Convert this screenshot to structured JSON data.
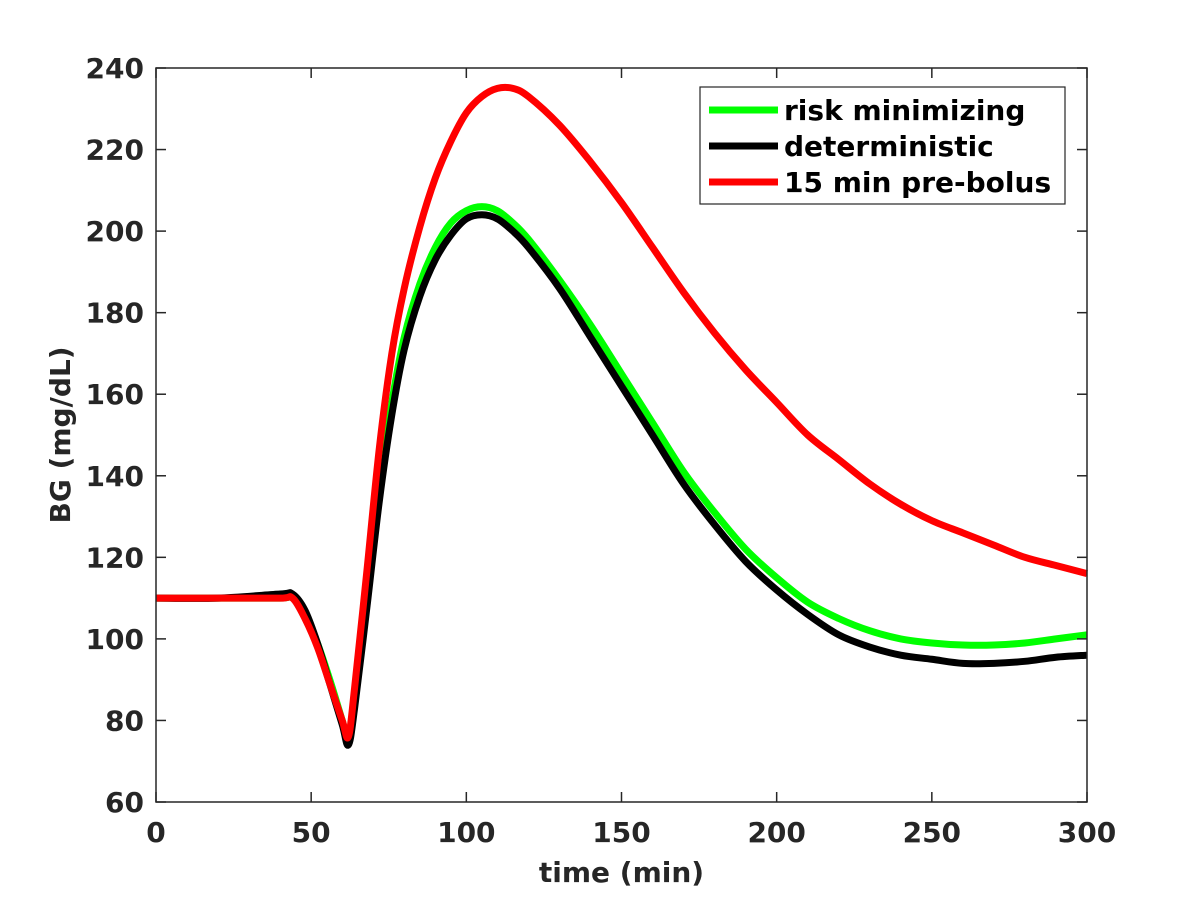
{
  "chart_data": {
    "type": "line",
    "title": "",
    "xlabel": "time (min)",
    "ylabel": "BG (mg/dL)",
    "xlim": [
      0,
      300
    ],
    "ylim": [
      60,
      240
    ],
    "xticks": [
      "0",
      "50",
      "100",
      "150",
      "200",
      "250",
      "300"
    ],
    "yticks": [
      "60",
      "80",
      "100",
      "120",
      "140",
      "160",
      "180",
      "200",
      "220",
      "240"
    ],
    "grid": false,
    "legend_position": "top-right",
    "series": [
      {
        "name": "risk minimizing",
        "color": "#00ff00",
        "x": [
          0,
          20,
          40,
          44,
          48,
          52,
          56,
          60,
          62,
          64,
          68,
          72,
          76,
          80,
          85,
          90,
          95,
          100,
          105,
          110,
          115,
          120,
          130,
          140,
          150,
          160,
          170,
          180,
          190,
          200,
          210,
          220,
          230,
          240,
          250,
          260,
          270,
          280,
          290,
          300
        ],
        "y": [
          110,
          110,
          110,
          110,
          106,
          99,
          90,
          80,
          75,
          84,
          110,
          137,
          158,
          174,
          187,
          196,
          202,
          205,
          206,
          205,
          202,
          198,
          188,
          177,
          165,
          153,
          141,
          131,
          122,
          115,
          109,
          105,
          102,
          100,
          99,
          98.5,
          98.5,
          99,
          100,
          101
        ]
      },
      {
        "name": "deterministic",
        "color": "#000000",
        "x": [
          0,
          20,
          40,
          44,
          48,
          52,
          56,
          60,
          62,
          64,
          68,
          72,
          76,
          80,
          85,
          90,
          95,
          100,
          105,
          110,
          115,
          120,
          130,
          140,
          150,
          160,
          170,
          180,
          190,
          200,
          210,
          220,
          230,
          240,
          250,
          260,
          270,
          280,
          290,
          300
        ],
        "y": [
          110,
          110,
          111,
          111,
          107,
          99,
          89,
          79,
          74,
          83,
          108,
          134,
          155,
          171,
          184,
          193,
          199,
          203,
          204,
          203,
          200,
          196,
          186,
          174,
          162,
          150,
          138,
          128,
          119,
          112,
          106,
          101,
          98,
          96,
          95,
          94,
          94,
          94.5,
          95.5,
          96
        ]
      },
      {
        "name": "15 min pre-bolus",
        "color": "#ff0000",
        "x": [
          0,
          20,
          40,
          44,
          48,
          52,
          56,
          60,
          62,
          64,
          68,
          72,
          76,
          80,
          85,
          90,
          95,
          100,
          105,
          110,
          115,
          120,
          130,
          140,
          150,
          160,
          170,
          180,
          190,
          200,
          210,
          220,
          230,
          240,
          250,
          260,
          270,
          280,
          290,
          300
        ],
        "y": [
          110,
          110,
          110,
          110,
          105,
          98,
          89,
          80,
          76,
          88,
          117,
          147,
          170,
          186,
          201,
          213,
          222,
          229,
          233,
          235,
          235,
          233,
          226,
          217,
          207,
          196,
          185,
          175,
          166,
          158,
          150,
          144,
          138,
          133,
          129,
          126,
          123,
          120,
          118,
          116
        ]
      }
    ]
  }
}
